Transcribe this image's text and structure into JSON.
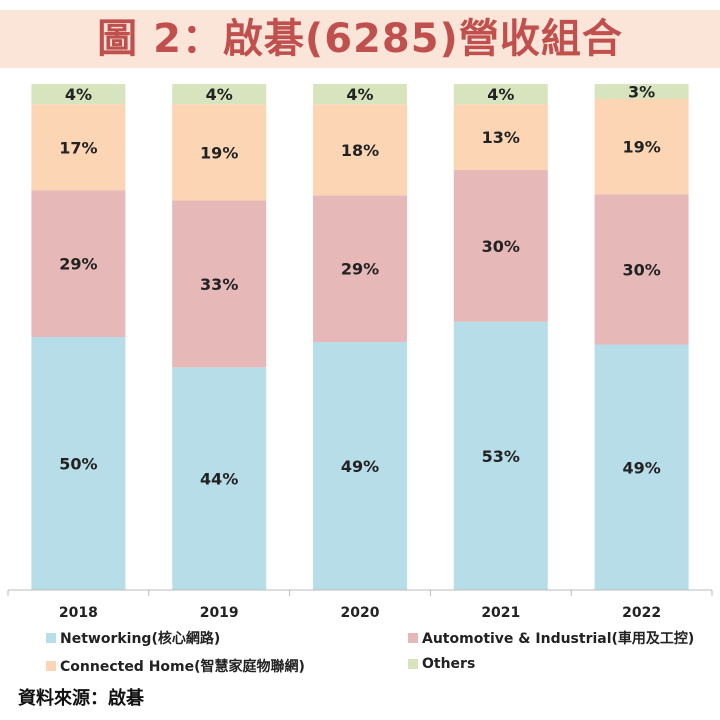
{
  "title": "圖 2：啟碁(6285)營收組合",
  "source": "資料來源：啟碁",
  "colors": {
    "title_text": "#c0504d",
    "title_bg": "#fbe4d8"
  },
  "chart_data": {
    "type": "bar",
    "stacked": true,
    "percent_stacked": true,
    "categories": [
      "2018",
      "2019",
      "2020",
      "2021",
      "2022"
    ],
    "series": [
      {
        "name": "Networking(核心網路)",
        "color": "#b7dde8",
        "values": [
          50,
          44,
          49,
          53,
          49
        ]
      },
      {
        "name": "Automotive & Industrial(車用及工控)",
        "color": "#e6b9b8",
        "values": [
          29,
          33,
          29,
          30,
          30
        ]
      },
      {
        "name": "Connected Home(智慧家庭物聯網)",
        "color": "#fcd5b5",
        "values": [
          17,
          19,
          18,
          13,
          19
        ]
      },
      {
        "name": "Others",
        "color": "#d7e4bd",
        "values": [
          4,
          4,
          4,
          4,
          3
        ]
      }
    ],
    "value_format": "{v}%",
    "legend_position": "bottom",
    "grid": false
  }
}
